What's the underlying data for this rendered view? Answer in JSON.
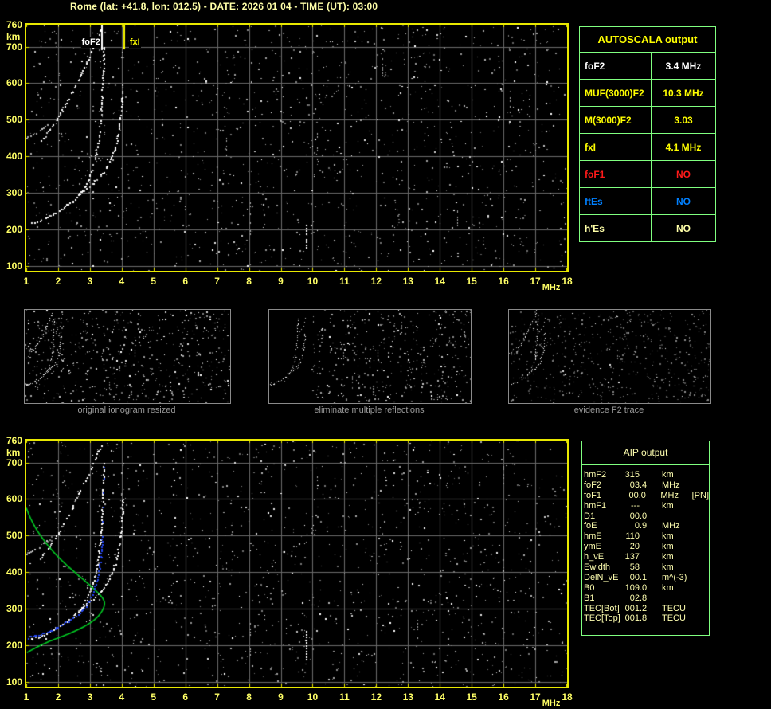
{
  "title": "Rome (lat: +41.8, lon: 012.5) - DATE: 2026 01 04 - TIME (UT): 03:00",
  "colors": {
    "background": "#000000",
    "plot_border": "#e8e800",
    "axis_labels": "#ffff66",
    "grid": "#6a6a6a",
    "table_border": "#80ff80",
    "title_text": "#ffffa8",
    "aip_text": "#ffffb0",
    "profile_green": "#00cc22",
    "restored_trace_blue": "#2244ee",
    "marker_fxI_yellow": "#ffff00",
    "marker_foF2_white": "#ffffff"
  },
  "autoscala_table": {
    "header": "AUTOSCALA output",
    "rows": [
      {
        "label": "foF2",
        "value": "3.4 MHz",
        "color": "#ffffff"
      },
      {
        "label": "MUF(3000)F2",
        "value": "10.3 MHz",
        "color": "#ffff00"
      },
      {
        "label": "M(3000)F2",
        "value": "3.03",
        "color": "#ffff00"
      },
      {
        "label": "fxI",
        "value": "4.1 MHz",
        "color": "#ffff00"
      },
      {
        "label": "foF1",
        "value": "NO",
        "color": "#ff1a1a"
      },
      {
        "label": "ftEs",
        "value": "NO",
        "color": "#0080ff"
      },
      {
        "label": "h'Es",
        "value": "NO",
        "color": "#ffffa8"
      }
    ]
  },
  "aip_table": {
    "header": "AIP output",
    "rows": [
      {
        "param": "hmF2",
        "value": "315",
        "unit": "km",
        "note": ""
      },
      {
        "param": "foF2",
        "value": "03.4",
        "unit": "MHz",
        "note": ""
      },
      {
        "param": "foF1",
        "value": "00.0",
        "unit": "MHz",
        "note": "[PN]"
      },
      {
        "param": "hmF1",
        "value": "---",
        "unit": "km",
        "note": ""
      },
      {
        "param": "D1",
        "value": "00.0",
        "unit": "",
        "note": ""
      },
      {
        "param": "foE",
        "value": "0.9",
        "unit": "MHz",
        "note": ""
      },
      {
        "param": "hmE",
        "value": "110",
        "unit": "km",
        "note": ""
      },
      {
        "param": "ymE",
        "value": "20",
        "unit": "km",
        "note": ""
      },
      {
        "param": "h_vE",
        "value": "137",
        "unit": "km",
        "note": ""
      },
      {
        "param": "Ewidth",
        "value": "58",
        "unit": "km",
        "note": ""
      },
      {
        "param": "DelN_vE",
        "value": "00.1",
        "unit": "m^(-3)",
        "note": ""
      },
      {
        "param": "B0",
        "value": "109.0",
        "unit": "km",
        "note": ""
      },
      {
        "param": "B1",
        "value": "02.8",
        "unit": "",
        "note": ""
      },
      {
        "param": "TEC[Bot]",
        "value": "001.2",
        "unit": "TECU",
        "note": ""
      },
      {
        "param": "TEC[Top]",
        "value": "001.8",
        "unit": "TECU",
        "note": ""
      }
    ]
  },
  "thumbnails": [
    {
      "caption": "original ionogram resized"
    },
    {
      "caption": "eliminate multiple reflections"
    },
    {
      "caption": "evidence F2 trace"
    }
  ],
  "chart_data": [
    {
      "id": "top-ionogram",
      "type": "scatter",
      "title": "measured ionogram with autoscaled characteristics",
      "xlabel": "MHz",
      "ylabel": "km",
      "xlim": [
        1,
        18
      ],
      "ylim": [
        87,
        760
      ],
      "grid": true,
      "x_ticks": [
        "1",
        "2",
        "3",
        "4",
        "5",
        "6",
        "7",
        "8",
        "9",
        "10",
        "11",
        "12",
        "13",
        "14",
        "15",
        "16",
        "17",
        "18"
      ],
      "y_ticks": [
        {
          "alt": 760,
          "label": "760"
        },
        {
          "alt": 700,
          "label": "700"
        },
        {
          "alt": 600,
          "label": "600"
        },
        {
          "alt": 500,
          "label": "500"
        },
        {
          "alt": 400,
          "label": "400"
        },
        {
          "alt": 300,
          "label": "300"
        },
        {
          "alt": 200,
          "label": "200"
        },
        {
          "alt": 100,
          "label": "100"
        }
      ],
      "series": [
        {
          "name": "F2-ordinary-trace",
          "color": "#ffffff",
          "prob": 0.8,
          "points": [
            [
              1.15,
              218
            ],
            [
              1.4,
              224
            ],
            [
              1.7,
              236
            ],
            [
              2.0,
              251
            ],
            [
              2.3,
              268
            ],
            [
              2.6,
              290
            ],
            [
              2.82,
              315
            ],
            [
              3.0,
              348
            ],
            [
              3.13,
              385
            ],
            [
              3.23,
              425
            ],
            [
              3.3,
              468
            ],
            [
              3.35,
              515
            ],
            [
              3.38,
              562
            ],
            [
              3.4,
              610
            ],
            [
              3.42,
              662
            ],
            [
              3.43,
              700
            ]
          ]
        },
        {
          "name": "F2-extraordinary-trace",
          "color": "#ffffff",
          "prob": 0.75,
          "points": [
            [
              2.62,
              296
            ],
            [
              2.9,
              313
            ],
            [
              3.15,
              331
            ],
            [
              3.38,
              352
            ],
            [
              3.58,
              378
            ],
            [
              3.74,
              410
            ],
            [
              3.86,
              448
            ],
            [
              3.94,
              492
            ],
            [
              3.99,
              535
            ],
            [
              4.02,
              572
            ],
            [
              4.04,
              602
            ]
          ]
        },
        {
          "name": "second-hop-trace",
          "color": "#ffffff",
          "prob": 0.7,
          "points": [
            [
              1.45,
              438
            ],
            [
              1.7,
              468
            ],
            [
              1.95,
              500
            ],
            [
              2.2,
              538
            ],
            [
              2.45,
              578
            ],
            [
              2.68,
              618
            ],
            [
              2.9,
              658
            ],
            [
              3.1,
              696
            ],
            [
              3.25,
              728
            ],
            [
              3.37,
              752
            ]
          ]
        },
        {
          "name": "second-hop-faint-segment",
          "color": "#aaaaaa",
          "prob": 0.5,
          "points": [
            [
              1.0,
              450
            ],
            [
              1.2,
              460
            ],
            [
              1.45,
              472
            ],
            [
              1.65,
              486
            ]
          ]
        },
        {
          "name": "topside-sparse-echoes",
          "color": "#bbbbbb",
          "scatter_only": true,
          "points": [
            [
              3.6,
              600
            ],
            [
              3.72,
              618
            ],
            [
              3.9,
              642
            ],
            [
              4.0,
              672
            ],
            [
              4.05,
              698
            ]
          ]
        }
      ],
      "markers": [
        {
          "label": "foF2",
          "f": 3.4,
          "alt_from": 760,
          "alt_to": 690,
          "color": "#ffffff",
          "label_side": "left",
          "label_alt": 712
        },
        {
          "label": "fxI",
          "f": 4.1,
          "alt_from": 760,
          "alt_to": 692,
          "color": "#ffff00",
          "label_side": "right",
          "label_alt": 712
        }
      ],
      "streaks": [
        {
          "f": 7.3,
          "alt0": 390,
          "alt1": 450,
          "bright": false
        },
        {
          "f": 8.05,
          "alt0": 185,
          "alt1": 280,
          "bright": false
        },
        {
          "f": 9.8,
          "alt0": 148,
          "alt1": 212,
          "bright": true
        },
        {
          "f": 10.15,
          "alt0": 390,
          "alt1": 470,
          "bright": false
        },
        {
          "f": 12.2,
          "alt0": 620,
          "alt1": 690,
          "bright": false
        },
        {
          "f": 14.55,
          "alt0": 205,
          "alt1": 265,
          "bright": false
        },
        {
          "f": 16.2,
          "alt0": 520,
          "alt1": 560,
          "bright": false
        }
      ]
    },
    {
      "id": "bottom-ionogram",
      "type": "scatter",
      "title": "ionogram with restored trace and electron density profile",
      "xlabel": "MHz",
      "ylabel": "km",
      "xlim": [
        1,
        18
      ],
      "ylim": [
        87,
        760
      ],
      "grid": true,
      "x_ticks": [
        "1",
        "2",
        "3",
        "4",
        "5",
        "6",
        "7",
        "8",
        "9",
        "10",
        "11",
        "12",
        "13",
        "14",
        "15",
        "16",
        "17",
        "18"
      ],
      "y_ticks": [
        {
          "alt": 760,
          "label": "760"
        },
        {
          "alt": 700,
          "label": "700"
        },
        {
          "alt": 600,
          "label": "600"
        },
        {
          "alt": 500,
          "label": "500"
        },
        {
          "alt": 400,
          "label": "400"
        },
        {
          "alt": 300,
          "label": "300"
        },
        {
          "alt": 200,
          "label": "200"
        },
        {
          "alt": 100,
          "label": "100"
        }
      ],
      "series": [
        {
          "name": "F2-ordinary-trace",
          "color": "#ffffff",
          "prob": 0.8,
          "points": [
            [
              1.15,
              218
            ],
            [
              1.4,
              224
            ],
            [
              1.7,
              236
            ],
            [
              2.0,
              251
            ],
            [
              2.3,
              268
            ],
            [
              2.6,
              290
            ],
            [
              2.82,
              315
            ],
            [
              3.0,
              348
            ],
            [
              3.13,
              385
            ],
            [
              3.23,
              425
            ],
            [
              3.3,
              468
            ],
            [
              3.35,
              515
            ],
            [
              3.38,
              562
            ],
            [
              3.4,
              610
            ],
            [
              3.42,
              662
            ],
            [
              3.43,
              700
            ]
          ]
        },
        {
          "name": "F2-extraordinary-trace",
          "color": "#ffffff",
          "prob": 0.75,
          "points": [
            [
              2.62,
              296
            ],
            [
              2.9,
              313
            ],
            [
              3.15,
              331
            ],
            [
              3.38,
              352
            ],
            [
              3.58,
              378
            ],
            [
              3.74,
              410
            ],
            [
              3.86,
              448
            ],
            [
              3.94,
              492
            ],
            [
              3.99,
              535
            ],
            [
              4.02,
              572
            ],
            [
              4.04,
              602
            ]
          ]
        },
        {
          "name": "second-hop-trace",
          "color": "#ffffff",
          "prob": 0.7,
          "points": [
            [
              1.45,
              438
            ],
            [
              1.7,
              468
            ],
            [
              1.95,
              500
            ],
            [
              2.2,
              538
            ],
            [
              2.45,
              578
            ],
            [
              2.68,
              618
            ],
            [
              2.9,
              658
            ],
            [
              3.1,
              696
            ],
            [
              3.25,
              728
            ],
            [
              3.37,
              752
            ]
          ]
        },
        {
          "name": "second-hop-faint-segment",
          "color": "#aaaaaa",
          "prob": 0.5,
          "points": [
            [
              1.0,
              450
            ],
            [
              1.2,
              460
            ],
            [
              1.45,
              472
            ],
            [
              1.65,
              486
            ]
          ]
        },
        {
          "name": "topside-sparse-echoes",
          "color": "#bbbbbb",
          "scatter_only": true,
          "points": [
            [
              3.6,
              600
            ],
            [
              3.72,
              618
            ],
            [
              3.9,
              642
            ],
            [
              4.0,
              672
            ],
            [
              4.05,
              698
            ]
          ]
        }
      ],
      "profile": {
        "name": "electron-density-profile",
        "color": "#00cc22",
        "points": [
          [
            1.0,
            576
          ],
          [
            1.12,
            550
          ],
          [
            1.3,
            520
          ],
          [
            1.55,
            488
          ],
          [
            1.85,
            456
          ],
          [
            2.2,
            425
          ],
          [
            2.55,
            398
          ],
          [
            2.9,
            372
          ],
          [
            3.15,
            352
          ],
          [
            3.32,
            338
          ],
          [
            3.42,
            326
          ],
          [
            3.46,
            315
          ],
          [
            3.43,
            303
          ],
          [
            3.36,
            291
          ],
          [
            3.22,
            276
          ],
          [
            3.0,
            261
          ],
          [
            2.72,
            247
          ],
          [
            2.4,
            234
          ],
          [
            2.05,
            222
          ],
          [
            1.7,
            210
          ],
          [
            1.4,
            198
          ],
          [
            1.18,
            188
          ],
          [
            1.02,
            180
          ]
        ]
      },
      "restored_trace": {
        "name": "autoscala-restored-trace",
        "color": "#2244ee",
        "points": [
          [
            1.05,
            221
          ],
          [
            1.25,
            226
          ],
          [
            1.5,
            232
          ],
          [
            1.75,
            240
          ],
          [
            2.0,
            250
          ],
          [
            2.25,
            262
          ],
          [
            2.5,
            276
          ],
          [
            2.72,
            292
          ],
          [
            2.9,
            312
          ],
          [
            3.05,
            335
          ],
          [
            3.17,
            362
          ],
          [
            3.26,
            393
          ],
          [
            3.32,
            428
          ],
          [
            3.36,
            465
          ],
          [
            3.39,
            502
          ]
        ],
        "sparse_points": [
          [
            3.4,
            540
          ],
          [
            3.41,
            578
          ],
          [
            3.42,
            618
          ],
          [
            3.43,
            656
          ],
          [
            3.44,
            688
          ]
        ]
      },
      "markers": [],
      "streaks": [
        {
          "f": 7.3,
          "alt0": 380,
          "alt1": 440,
          "bright": false
        },
        {
          "f": 8.05,
          "alt0": 160,
          "alt1": 260,
          "bright": false
        },
        {
          "f": 9.8,
          "alt0": 160,
          "alt1": 245,
          "bright": true
        },
        {
          "f": 10.15,
          "alt0": 600,
          "alt1": 660,
          "bright": false
        },
        {
          "f": 13.3,
          "alt0": 210,
          "alt1": 260,
          "bright": false
        },
        {
          "f": 16.0,
          "alt0": 640,
          "alt1": 690,
          "bright": false
        }
      ]
    }
  ]
}
